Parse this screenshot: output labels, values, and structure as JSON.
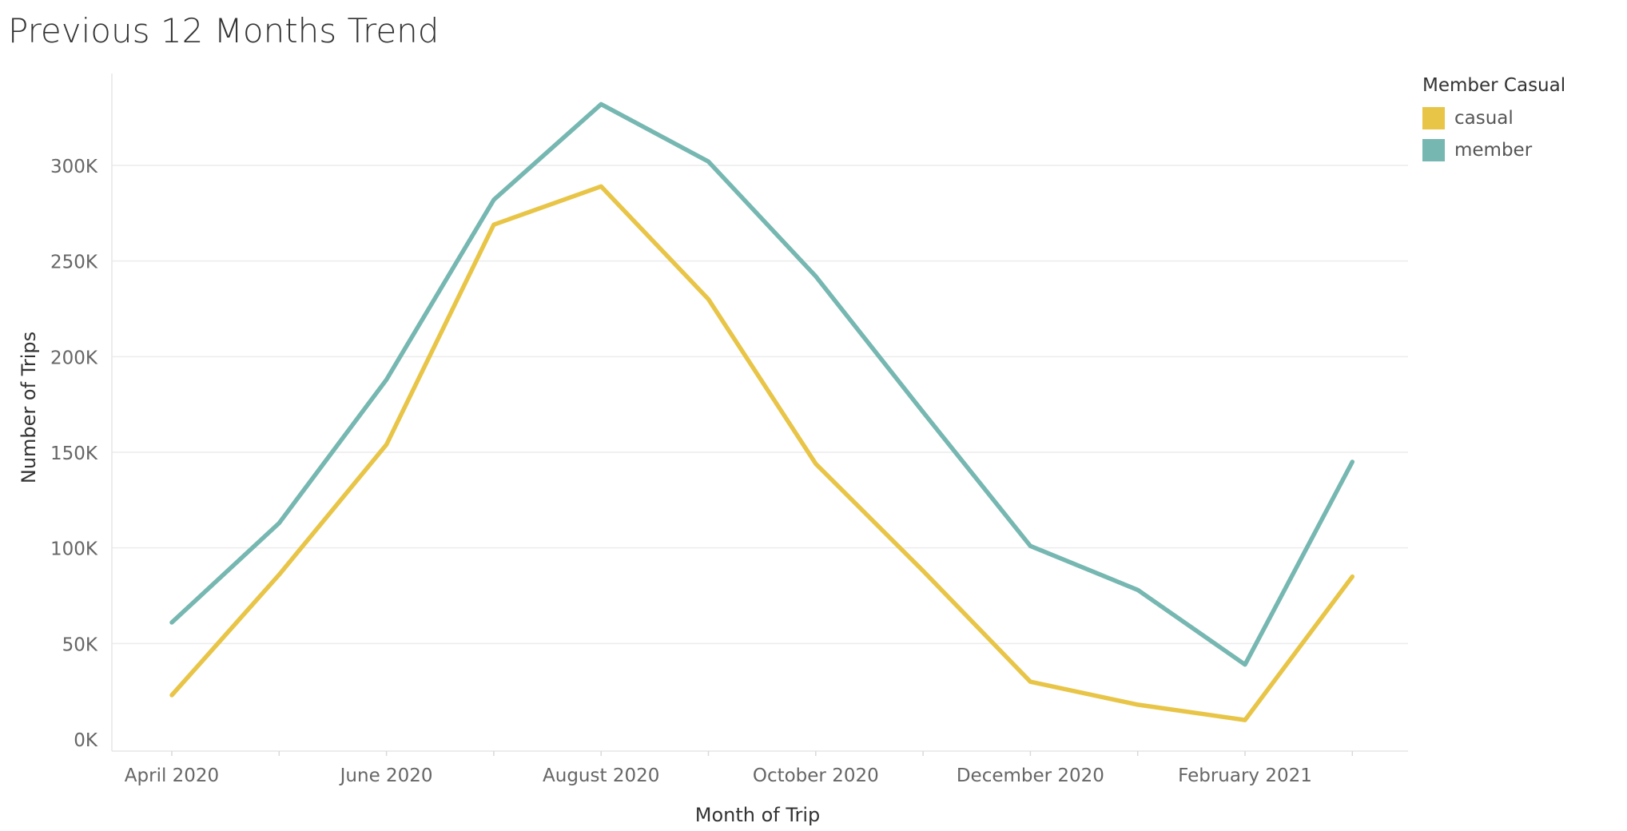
{
  "title": "Previous 12 Months Trend",
  "legend": {
    "title": "Member Casual",
    "items": [
      {
        "label": "casual",
        "color": "#E8C547"
      },
      {
        "label": "member",
        "color": "#76B7B2"
      }
    ]
  },
  "chart_data": {
    "type": "line",
    "title": "Previous 12 Months Trend",
    "xlabel": "Month of Trip",
    "ylabel": "Number of Trips",
    "x": [
      "April 2020",
      "May 2020",
      "June 2020",
      "July 2020",
      "August 2020",
      "September 2020",
      "October 2020",
      "November 2020",
      "December 2020",
      "January 2021",
      "February 2021",
      "March 2021"
    ],
    "x_tick_labels": [
      "April 2020",
      "June 2020",
      "August 2020",
      "October 2020",
      "December 2020",
      "February 2021"
    ],
    "y_tick_labels": [
      "0K",
      "50K",
      "100K",
      "150K",
      "200K",
      "250K",
      "300K"
    ],
    "y_ticks": [
      0,
      50000,
      100000,
      150000,
      200000,
      250000,
      300000
    ],
    "ylim": [
      0,
      330000
    ],
    "grid": "horizontal",
    "legend_position": "top-right",
    "series": [
      {
        "name": "casual",
        "color": "#E8C547",
        "values": [
          23000,
          86000,
          154000,
          269000,
          289000,
          230000,
          144000,
          88000,
          30000,
          18000,
          10000,
          85000
        ]
      },
      {
        "name": "member",
        "color": "#76B7B2",
        "values": [
          61000,
          113000,
          188000,
          282000,
          332000,
          302000,
          242000,
          171000,
          101000,
          78000,
          39000,
          145000
        ]
      }
    ]
  }
}
